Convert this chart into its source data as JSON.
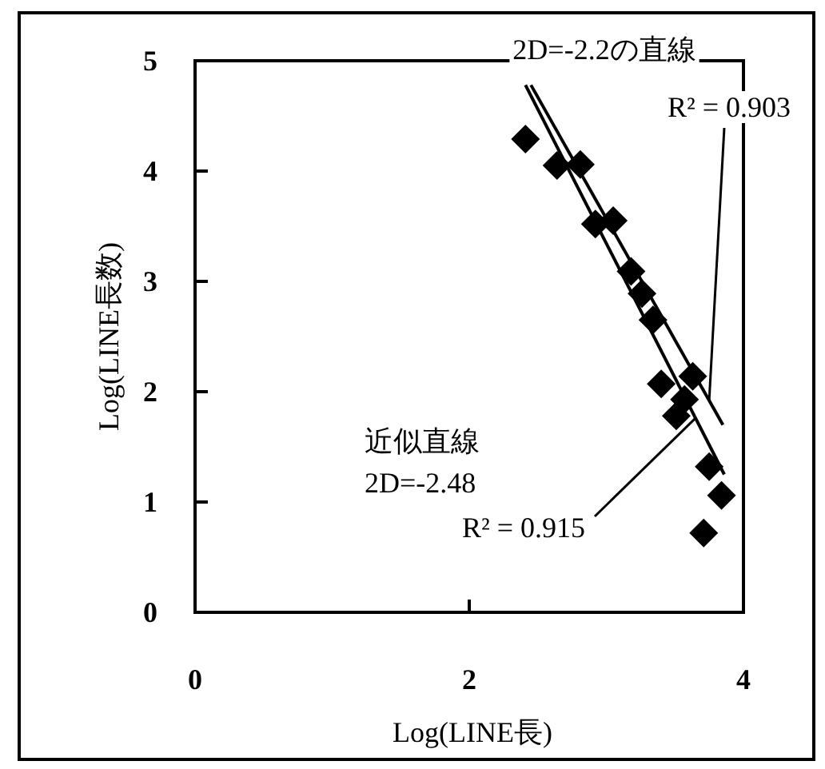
{
  "chart_data": {
    "type": "scatter",
    "xlabel": "Log(LINE長)",
    "ylabel": "Log(LINE長数)",
    "xlim": [
      0,
      4
    ],
    "xticks": [
      0,
      2,
      4
    ],
    "ylim": [
      0,
      5
    ],
    "yticks": [
      0,
      1,
      2,
      3,
      4,
      5
    ],
    "grid": false,
    "series": [
      {
        "color": "#000000",
        "marker": "diamond",
        "x": [
          2.41,
          2.64,
          2.81,
          2.92,
          3.05,
          3.18,
          3.26,
          3.34,
          3.4,
          3.63,
          3.51,
          3.57,
          3.75,
          3.84,
          3.71
        ],
        "values": [
          4.29,
          4.05,
          4.06,
          3.52,
          3.55,
          3.09,
          2.89,
          2.65,
          2.07,
          2.14,
          1.78,
          1.93,
          1.32,
          1.06,
          0.72
        ]
      },
      {
        "type": "line",
        "color": "#000000",
        "line_style": "solid",
        "x": [
          2.41,
          3.86
        ],
        "values": [
          4.78,
          1.25
        ]
      },
      {
        "type": "line",
        "color": "#000000",
        "line_style": "solid",
        "x": [
          2.45,
          3.85
        ],
        "values": [
          4.78,
          1.7
        ]
      }
    ],
    "annotations": [
      "2D=-2.2の直線",
      {
        "text": "R² = 0.903",
        "x": 3.75,
        "y": 1.92
      },
      "近似直線",
      "2D=-2.48",
      {
        "text": "R² = 0.915",
        "x": 3.65,
        "y": 1.76
      }
    ]
  }
}
